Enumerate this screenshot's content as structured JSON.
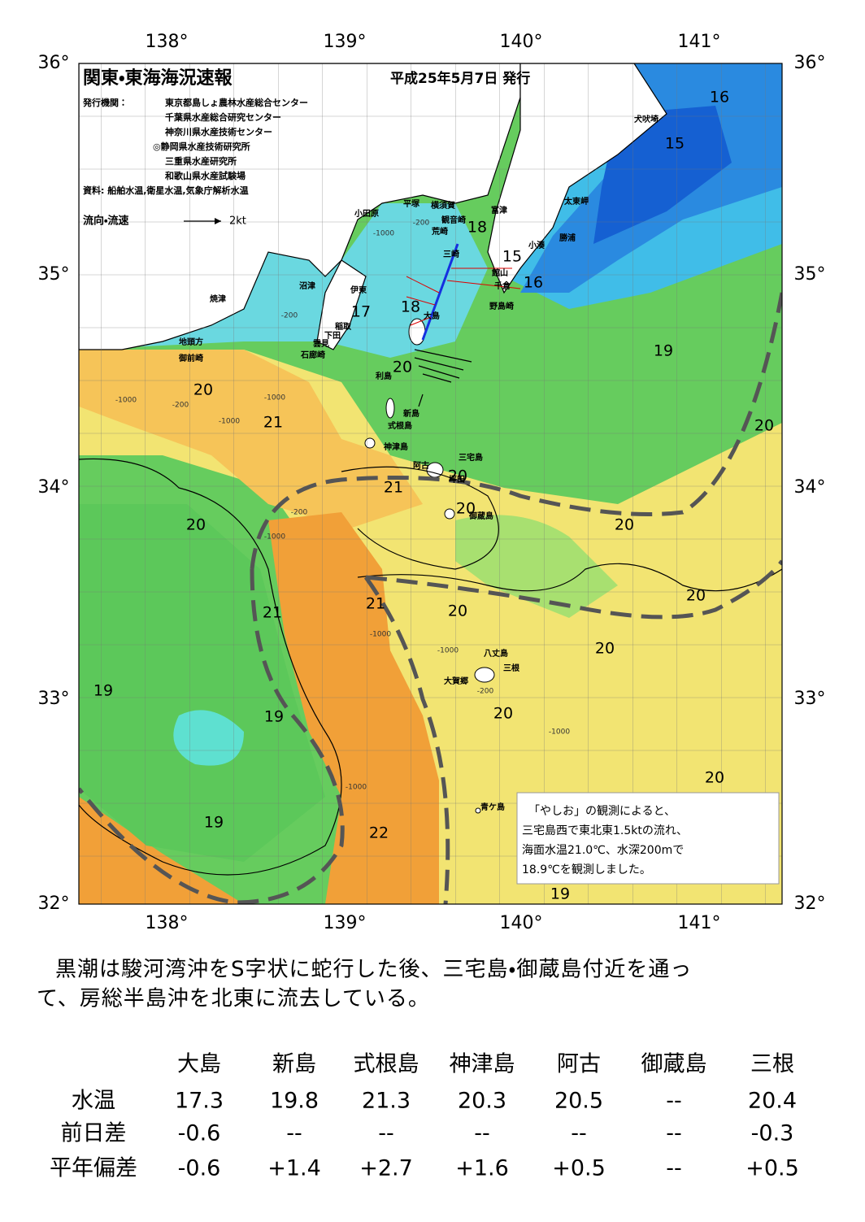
{
  "header": {
    "title": "関東・東海海況速報",
    "date": "平成25年5月7日 発行",
    "issuer_label": "発行機関：",
    "issuers": [
      "東京都島しょ農林水産総合センター",
      "千葉県水産総合研究センター",
      "神奈川県水産技術センター",
      "◎静岡県水産技術研究所",
      "三重県水産研究所",
      "和歌山県水産試験場"
    ],
    "source": "資料: 船舶水温,衛星水温,気象庁解析水温",
    "legend": "流向・流速",
    "legend_speed": "2kt"
  },
  "axes": {
    "lon": [
      "138°",
      "139°",
      "140°",
      "141°"
    ],
    "lat": [
      "36°",
      "35°",
      "34°",
      "33°",
      "32°"
    ]
  },
  "places": [
    "犬吠埼",
    "太東岬",
    "勝浦",
    "小湊",
    "富津",
    "横須賀",
    "平塚",
    "小田原",
    "観音崎",
    "荒崎",
    "三崎",
    "館山",
    "千倉",
    "野島崎",
    "沼津",
    "伊東",
    "焼津",
    "大島",
    "稲取",
    "下田",
    "雲見",
    "石廊崎",
    "地頭方",
    "御前崎",
    "利島",
    "新島",
    "式根島",
    "神津島",
    "三宅島",
    "阿古",
    "坪田",
    "御蔵島",
    "八丈島",
    "三根",
    "大賀郷",
    "青ケ島"
  ],
  "temperatures": [
    16,
    15,
    18,
    15,
    16,
    17,
    18,
    20,
    19,
    20,
    21,
    20,
    20,
    21,
    20,
    20,
    20,
    21,
    20,
    20,
    21,
    20,
    19,
    19,
    20,
    20,
    19,
    22,
    19
  ],
  "depths": [
    "-1000",
    "-200",
    "-200",
    "-1000",
    "-200",
    "-1000",
    "-200",
    "-1000",
    "-1000",
    "-1000",
    "-200",
    "-1000",
    "-1000",
    "-1000"
  ],
  "note": [
    "「やしお」の観測によると、",
    "三宅島西で東北東1.5ktの流れ、",
    "海面水温21.0℃、水深200mで",
    "18.9℃を観測しました。"
  ],
  "summary": [
    "黒潮は駿河湾沖をS字状に蛇行した後、三宅島・御蔵島付近を通っ",
    "て、房総半島沖を北東に流去している。"
  ],
  "table": {
    "columns": [
      "大島",
      "新島",
      "式根島",
      "神津島",
      "阿古",
      "御蔵島",
      "三根"
    ],
    "rows": [
      {
        "label": "水温",
        "cells": [
          "17.3",
          "19.8",
          "21.3",
          "20.3",
          "20.5",
          "--",
          "20.4"
        ]
      },
      {
        "label": "前日差",
        "cells": [
          "-0.6",
          "--",
          "--",
          "--",
          "--",
          "--",
          "-0.3"
        ]
      },
      {
        "label": "平年偏差",
        "cells": [
          "-0.6",
          "+1.4",
          "+2.7",
          "+1.6",
          "+0.5",
          "--",
          "+0.5"
        ]
      }
    ]
  }
}
